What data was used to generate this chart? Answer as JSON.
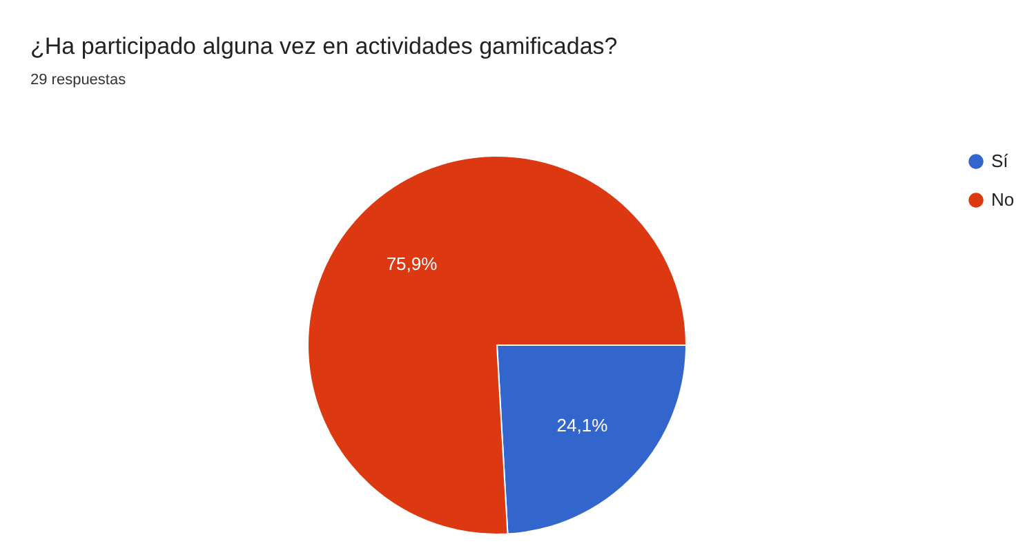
{
  "chart_data": {
    "type": "pie",
    "title": "¿Ha participado alguna vez en actividades gamificadas?",
    "subtitle": "29 respuestas",
    "categories": [
      "Sí",
      "No"
    ],
    "values": [
      24.1,
      75.9
    ],
    "colors": [
      "#3366cc",
      "#dc3912"
    ],
    "value_labels": [
      "24,1%",
      "75,9%"
    ],
    "legend": "top right"
  }
}
